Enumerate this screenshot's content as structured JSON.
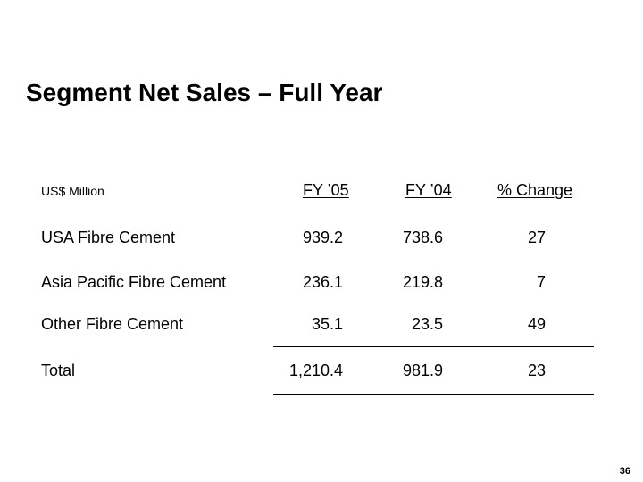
{
  "title": "Segment Net Sales – Full Year",
  "table": {
    "units_label": "US$ Million",
    "headers": [
      "FY ’05",
      "FY ’04",
      "% Change"
    ],
    "rows": [
      {
        "label": "USA Fibre Cement",
        "fy05": "939.2",
        "fy04": "738.6",
        "change": "27"
      },
      {
        "label": "Asia Pacific Fibre Cement",
        "fy05": "236.1",
        "fy04": "219.8",
        "change": "7"
      },
      {
        "label": "Other Fibre Cement",
        "fy05": "35.1",
        "fy04": "23.5",
        "change": "49"
      },
      {
        "label": "Total",
        "fy05": "1,210.4",
        "fy04": "981.9",
        "change": "23"
      }
    ]
  },
  "page_number": "36"
}
